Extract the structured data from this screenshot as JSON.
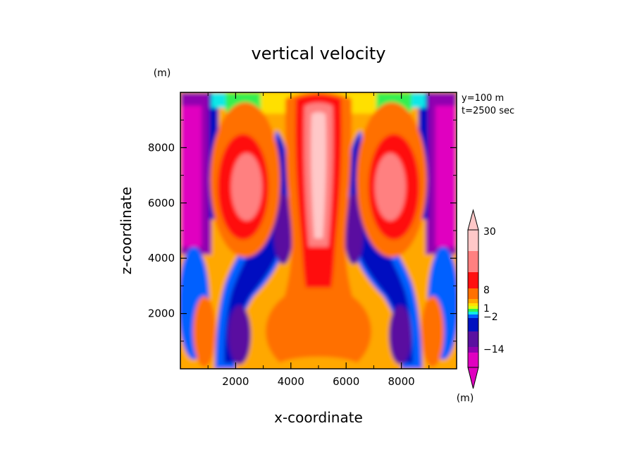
{
  "chart_data": {
    "type": "heatmap",
    "title": "vertical velocity",
    "xlabel": "x-coordinate",
    "ylabel": "z-coordinate",
    "x_unit": "(m)",
    "y_unit": "(m)",
    "colorbar_unit": "(m)",
    "annotations": [
      "y=100 m",
      "t=2500 sec"
    ],
    "xlim": [
      0,
      10000
    ],
    "ylim": [
      0,
      10000
    ],
    "x_ticks": [
      2000,
      4000,
      6000,
      8000
    ],
    "y_ticks": [
      2000,
      4000,
      6000,
      8000
    ],
    "colorbar": {
      "levels": [
        -14,
        -2,
        1,
        8,
        30
      ],
      "labels": [
        "30",
        "8",
        "1",
        "-2",
        "-14"
      ],
      "colors": [
        "#ffc8c8",
        "#ff8080",
        "#ff1010",
        "#ff7000",
        "#ffa800",
        "#ffe000",
        "#d8ff10",
        "#30f050",
        "#10e8e8",
        "#0060ff",
        "#0010c0",
        "#5a10a0",
        "#9000b0",
        "#e000c0"
      ]
    }
  }
}
